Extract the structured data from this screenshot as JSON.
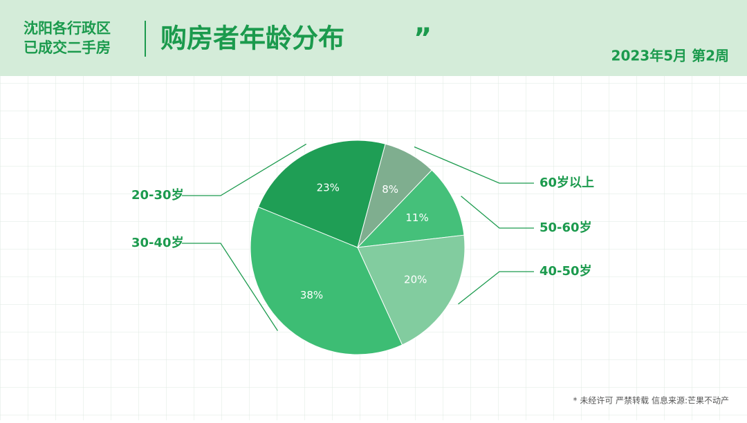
{
  "header": {
    "region_line1": "沈阳各行政区",
    "region_line2": "已成交二手房",
    "title": "购房者年龄分布",
    "title_mark": "”",
    "period": "2023年5月 第2周"
  },
  "chart_data": {
    "type": "pie",
    "categories": [
      "60岁以上",
      "50-60岁",
      "40-50岁",
      "30-40岁",
      "20-30岁"
    ],
    "values": [
      8,
      11,
      20,
      38,
      23
    ],
    "value_labels": [
      "8%",
      "11%",
      "20%",
      "38%",
      "23%"
    ],
    "colors": [
      "#7fae8f",
      "#45c07a",
      "#82cc9f",
      "#3dbd74",
      "#1f9e55"
    ]
  },
  "footer": "* 未经许可 严禁转载 信息来源:芒果不动产"
}
